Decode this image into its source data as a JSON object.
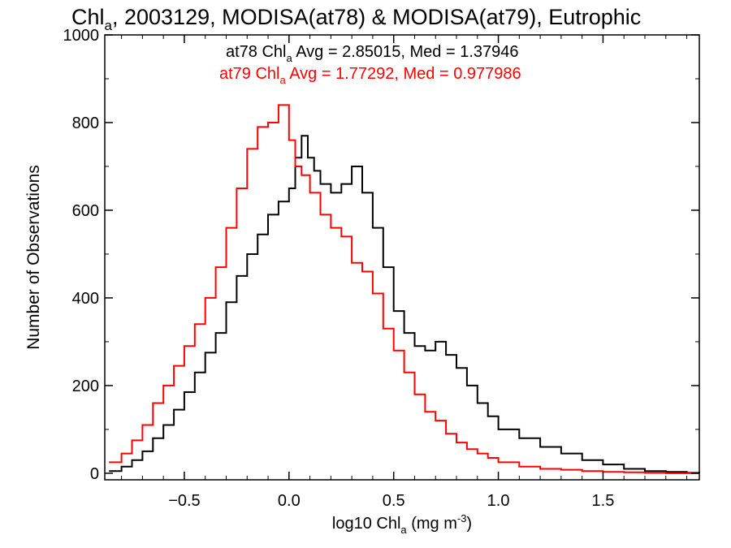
{
  "chart_data": {
    "type": "line",
    "title": {
      "pre": "Chl",
      "sub": "a",
      "post": ", 2003129, MODISA(at78) & MODISA(at79), Eutrophic"
    },
    "xlabel": {
      "pre": "log10 Chl",
      "sub": "a",
      "mid": " (mg m",
      "sup": "-3",
      "post": ")"
    },
    "ylabel": "Number of Observations",
    "xlim": [
      -0.88,
      1.96
    ],
    "ylim": [
      -15,
      1000
    ],
    "xticks": [
      -0.5,
      0.0,
      0.5,
      1.0,
      1.5
    ],
    "xtick_labels": [
      "−0.5",
      "0.0",
      "0.5",
      "1.0",
      "1.5"
    ],
    "yticks": [
      0,
      200,
      400,
      600,
      800,
      1000
    ],
    "ytick_labels": [
      "0",
      "200",
      "400",
      "600",
      "800",
      "1000"
    ],
    "step": true,
    "annotations": [
      {
        "pre": "at78 Chl",
        "sub": "a",
        "post": " Avg = 2.85015, Med = 1.37946",
        "color": "#000000"
      },
      {
        "pre": "at79 Chl",
        "sub": "a",
        "post": " Avg = 1.77292, Med = 0.977986",
        "color": "#ff0000"
      }
    ],
    "series": [
      {
        "name": "at78",
        "color": "#000000",
        "x": [
          -0.86,
          -0.8,
          -0.75,
          -0.7,
          -0.65,
          -0.6,
          -0.55,
          -0.5,
          -0.45,
          -0.4,
          -0.35,
          -0.3,
          -0.25,
          -0.2,
          -0.15,
          -0.1,
          -0.05,
          0.0,
          0.03,
          0.06,
          0.09,
          0.12,
          0.15,
          0.2,
          0.25,
          0.3,
          0.35,
          0.4,
          0.45,
          0.5,
          0.55,
          0.6,
          0.65,
          0.7,
          0.75,
          0.8,
          0.85,
          0.9,
          0.95,
          1.0,
          1.1,
          1.2,
          1.3,
          1.4,
          1.5,
          1.6,
          1.7,
          1.8,
          1.9,
          1.96
        ],
        "values": [
          5,
          15,
          30,
          50,
          80,
          110,
          145,
          185,
          230,
          275,
          320,
          390,
          450,
          500,
          545,
          590,
          620,
          650,
          720,
          770,
          720,
          690,
          660,
          640,
          660,
          700,
          640,
          560,
          470,
          370,
          320,
          290,
          280,
          300,
          270,
          240,
          200,
          160,
          130,
          100,
          80,
          60,
          45,
          30,
          20,
          10,
          5,
          3,
          1,
          0
        ]
      },
      {
        "name": "at79",
        "color": "#ff0000",
        "x": [
          -0.86,
          -0.8,
          -0.75,
          -0.7,
          -0.65,
          -0.6,
          -0.55,
          -0.5,
          -0.45,
          -0.4,
          -0.35,
          -0.3,
          -0.25,
          -0.2,
          -0.15,
          -0.1,
          -0.05,
          0.0,
          0.03,
          0.06,
          0.1,
          0.15,
          0.2,
          0.25,
          0.3,
          0.35,
          0.4,
          0.45,
          0.5,
          0.55,
          0.6,
          0.65,
          0.7,
          0.75,
          0.8,
          0.85,
          0.9,
          0.95,
          1.0,
          1.1,
          1.2,
          1.3,
          1.4,
          1.5,
          1.6,
          1.7,
          1.8,
          1.9,
          1.96
        ],
        "values": [
          25,
          45,
          75,
          110,
          160,
          200,
          245,
          290,
          340,
          400,
          470,
          560,
          650,
          740,
          790,
          800,
          840,
          760,
          700,
          680,
          640,
          590,
          560,
          540,
          480,
          460,
          410,
          330,
          280,
          230,
          180,
          140,
          120,
          90,
          70,
          55,
          45,
          35,
          25,
          15,
          10,
          8,
          5,
          3,
          2,
          1,
          0,
          0,
          0
        ]
      }
    ]
  }
}
